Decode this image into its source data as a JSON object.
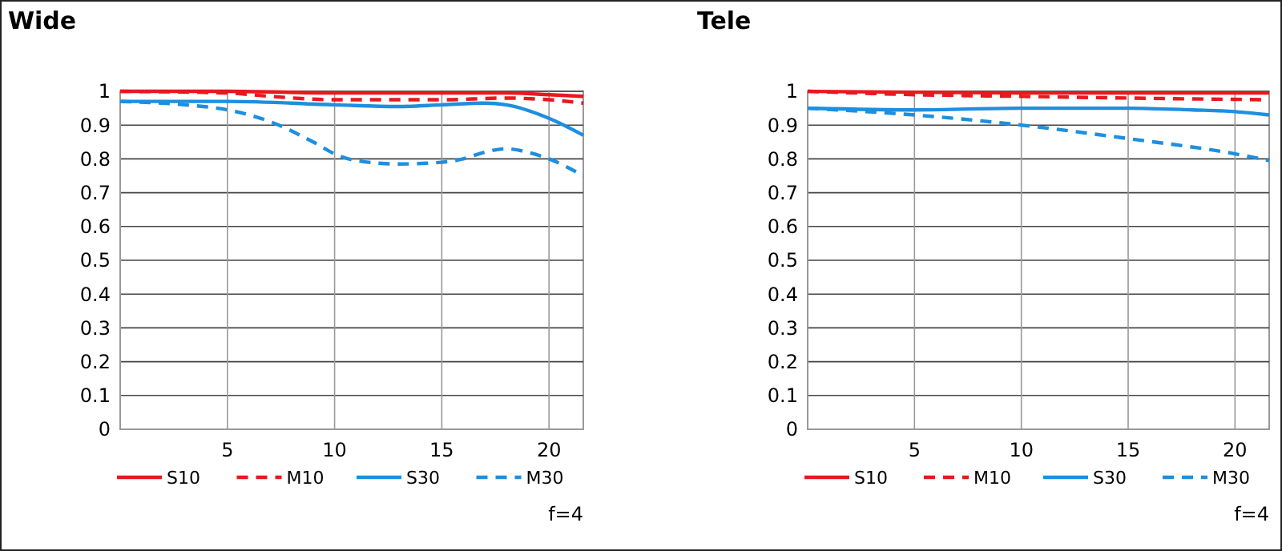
{
  "chart_data": [
    {
      "type": "line",
      "title": "Wide",
      "xlim": [
        0,
        21.6
      ],
      "xticks": [
        5,
        10,
        15,
        20
      ],
      "ylim": [
        0,
        1
      ],
      "yticks": [
        0,
        0.1,
        0.2,
        0.3,
        0.4,
        0.5,
        0.6,
        0.7,
        0.8,
        0.9,
        1
      ],
      "grid": true,
      "legend": "bottom",
      "annotations": [
        "f=4"
      ],
      "series": [
        {
          "name": "S10",
          "color": "#e8191e",
          "line_style": "solid",
          "x": [
            0,
            5,
            10,
            15,
            18,
            20,
            21.6
          ],
          "values": [
            1,
            1,
            0.995,
            0.995,
            0.995,
            0.99,
            0.985
          ]
        },
        {
          "name": "M10",
          "color": "#e8191e",
          "line_style": "dashed",
          "x": [
            0,
            5,
            7,
            10,
            15,
            18,
            20,
            21.6
          ],
          "values": [
            1,
            0.995,
            0.985,
            0.975,
            0.975,
            0.98,
            0.975,
            0.965
          ]
        },
        {
          "name": "S30",
          "color": "#1e8fe0",
          "line_style": "solid",
          "x": [
            0,
            5,
            10,
            13,
            15,
            17,
            18,
            20,
            21.6
          ],
          "values": [
            0.97,
            0.97,
            0.96,
            0.955,
            0.96,
            0.965,
            0.96,
            0.92,
            0.87
          ]
        },
        {
          "name": "M30",
          "color": "#1e8fe0",
          "line_style": "dashed",
          "x": [
            0,
            3,
            5,
            7,
            9,
            10,
            11,
            13,
            15,
            16,
            17,
            18,
            19,
            20,
            21.6
          ],
          "values": [
            0.97,
            0.96,
            0.945,
            0.91,
            0.85,
            0.815,
            0.795,
            0.785,
            0.79,
            0.8,
            0.82,
            0.83,
            0.82,
            0.8,
            0.75
          ]
        }
      ]
    },
    {
      "type": "line",
      "title": "Tele",
      "xlim": [
        0,
        21.6
      ],
      "xticks": [
        5,
        10,
        15,
        20
      ],
      "ylim": [
        0,
        1
      ],
      "yticks": [
        0,
        0.1,
        0.2,
        0.3,
        0.4,
        0.5,
        0.6,
        0.7,
        0.8,
        0.9,
        1
      ],
      "grid": true,
      "legend": "bottom",
      "annotations": [
        "f=4"
      ],
      "series": [
        {
          "name": "S10",
          "color": "#e8191e",
          "line_style": "solid",
          "x": [
            0,
            10,
            21.6
          ],
          "values": [
            1,
            0.995,
            0.995
          ]
        },
        {
          "name": "M10",
          "color": "#e8191e",
          "line_style": "dashed",
          "x": [
            0,
            5,
            10,
            15,
            21.6
          ],
          "values": [
            1,
            0.99,
            0.985,
            0.98,
            0.975
          ]
        },
        {
          "name": "S30",
          "color": "#1e8fe0",
          "line_style": "solid",
          "x": [
            0,
            5,
            10,
            15,
            18,
            20,
            21.6
          ],
          "values": [
            0.95,
            0.945,
            0.95,
            0.95,
            0.945,
            0.94,
            0.93
          ]
        },
        {
          "name": "M30",
          "color": "#1e8fe0",
          "line_style": "dashed",
          "x": [
            0,
            5,
            10,
            15,
            20,
            21.6
          ],
          "values": [
            0.95,
            0.93,
            0.9,
            0.86,
            0.815,
            0.795
          ]
        }
      ]
    }
  ]
}
